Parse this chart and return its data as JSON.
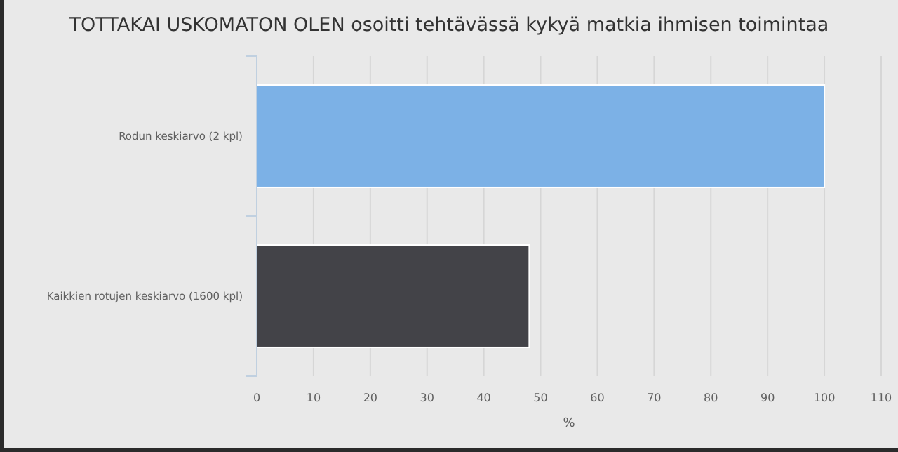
{
  "chart_data": {
    "type": "bar",
    "orientation": "horizontal",
    "title": "TOTTAKAI USKOMATON OLEN osoitti tehtävässä kykyä matkia ihmisen toimintaa",
    "categories": [
      "Rodun keskiarvo (2 kpl)",
      "Kaikkien rotujen keskiarvo (1600 kpl)"
    ],
    "values": [
      100,
      48
    ],
    "colors": [
      "#7cb1e6",
      "#434348"
    ],
    "xlabel": "%",
    "xlim": [
      0,
      110
    ],
    "xticks": [
      0,
      10,
      20,
      30,
      40,
      50,
      60,
      70,
      80,
      90,
      100,
      110
    ],
    "grid": "x"
  }
}
